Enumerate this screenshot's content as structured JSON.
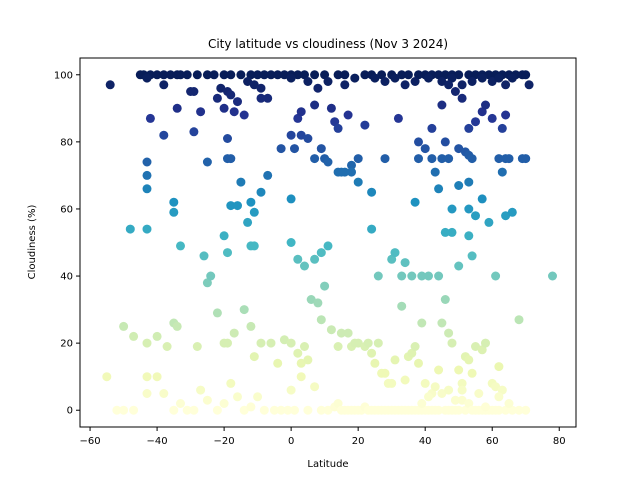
{
  "chart_data": {
    "type": "scatter",
    "title": "City latitude vs cloudiness (Nov 3 2024)",
    "xlabel": "Latitude",
    "ylabel": "Cloudiness (%)",
    "xlim": [
      -63,
      85
    ],
    "ylim": [
      -5,
      105
    ],
    "xticks": [
      -60,
      -40,
      -20,
      0,
      20,
      40,
      60,
      80
    ],
    "yticks": [
      0,
      20,
      40,
      60,
      80,
      100
    ],
    "grid": false,
    "colormap": "YlGnBu",
    "colormap_stops": [
      "#ffffd9",
      "#edf8b1",
      "#c7e9b4",
      "#7fcdbb",
      "#41b6c4",
      "#1d91c0",
      "#225ea8",
      "#253494",
      "#081d58"
    ],
    "color_by": "cloudiness",
    "points": [
      [
        -54,
        97
      ],
      [
        -45,
        100
      ],
      [
        -44,
        100
      ],
      [
        -42,
        100
      ],
      [
        -40,
        100
      ],
      [
        -38,
        100
      ],
      [
        -36,
        100
      ],
      [
        -34,
        100
      ],
      [
        -33,
        100
      ],
      [
        -31,
        100
      ],
      [
        -25,
        100
      ],
      [
        -23,
        100
      ],
      [
        -20,
        100
      ],
      [
        -18,
        100
      ],
      [
        -15,
        100
      ],
      [
        -12,
        100
      ],
      [
        -10,
        100
      ],
      [
        -8,
        100
      ],
      [
        -6,
        100
      ],
      [
        -4,
        100
      ],
      [
        -2,
        100
      ],
      [
        0,
        100
      ],
      [
        2,
        100
      ],
      [
        4,
        100
      ],
      [
        7,
        100
      ],
      [
        10,
        100
      ],
      [
        14,
        100
      ],
      [
        16,
        100
      ],
      [
        19,
        99
      ],
      [
        22,
        100
      ],
      [
        24,
        100
      ],
      [
        27,
        100
      ],
      [
        30,
        100
      ],
      [
        33,
        100
      ],
      [
        35,
        100
      ],
      [
        38,
        100
      ],
      [
        40,
        100
      ],
      [
        42,
        100
      ],
      [
        44,
        100
      ],
      [
        46,
        100
      ],
      [
        48,
        100
      ],
      [
        50,
        100
      ],
      [
        53,
        100
      ],
      [
        55,
        100
      ],
      [
        57,
        100
      ],
      [
        59,
        100
      ],
      [
        61,
        100
      ],
      [
        63,
        100
      ],
      [
        65,
        100
      ],
      [
        67,
        100
      ],
      [
        69,
        100
      ],
      [
        70,
        100
      ],
      [
        71,
        97
      ],
      [
        -43,
        99
      ],
      [
        -38,
        97
      ],
      [
        -30,
        95
      ],
      [
        -28,
        100
      ],
      [
        -22,
        93
      ],
      [
        -21,
        96
      ],
      [
        -19,
        95
      ],
      [
        -16,
        92
      ],
      [
        -13,
        98
      ],
      [
        -11,
        97
      ],
      [
        -9,
        96
      ],
      [
        -7,
        93
      ],
      [
        0,
        99
      ],
      [
        5,
        98
      ],
      [
        8,
        96
      ],
      [
        11,
        98
      ],
      [
        16,
        97
      ],
      [
        25,
        99
      ],
      [
        28,
        98
      ],
      [
        31,
        99
      ],
      [
        34,
        97
      ],
      [
        37,
        98
      ],
      [
        41,
        99
      ],
      [
        45,
        98
      ],
      [
        48,
        99
      ],
      [
        51,
        97
      ],
      [
        54,
        98
      ],
      [
        57,
        99
      ],
      [
        60,
        98
      ],
      [
        62,
        99
      ],
      [
        64,
        97
      ],
      [
        66,
        99
      ],
      [
        -42,
        87
      ],
      [
        -34,
        90
      ],
      [
        -29,
        95
      ],
      [
        -27,
        89
      ],
      [
        -20,
        90
      ],
      [
        -18,
        94
      ],
      [
        -17,
        89
      ],
      [
        -14,
        88
      ],
      [
        -9,
        93
      ],
      [
        2,
        87
      ],
      [
        3,
        89
      ],
      [
        7,
        91
      ],
      [
        12,
        90
      ],
      [
        13,
        86
      ],
      [
        14,
        84
      ],
      [
        17,
        88
      ],
      [
        22,
        85
      ],
      [
        32,
        87
      ],
      [
        38,
        80
      ],
      [
        42,
        84
      ],
      [
        45,
        91
      ],
      [
        47,
        97
      ],
      [
        49,
        95
      ],
      [
        51,
        93
      ],
      [
        53,
        84
      ],
      [
        55,
        86
      ],
      [
        57,
        89
      ],
      [
        58,
        91
      ],
      [
        60,
        87
      ],
      [
        63,
        84
      ],
      [
        64,
        88
      ],
      [
        -38,
        82
      ],
      [
        -29,
        83
      ],
      [
        -19,
        81
      ],
      [
        -3,
        78
      ],
      [
        0,
        82
      ],
      [
        1,
        78
      ],
      [
        3,
        82
      ],
      [
        5,
        81
      ],
      [
        7,
        75
      ],
      [
        9,
        78
      ],
      [
        10,
        75
      ],
      [
        11,
        74
      ],
      [
        15,
        71
      ],
      [
        18,
        73
      ],
      [
        20,
        75
      ],
      [
        24,
        65
      ],
      [
        28,
        75
      ],
      [
        38,
        75
      ],
      [
        40,
        78
      ],
      [
        42,
        75
      ],
      [
        43,
        71
      ],
      [
        45,
        75
      ],
      [
        46,
        80
      ],
      [
        47,
        75
      ],
      [
        50,
        78
      ],
      [
        52,
        77
      ],
      [
        53,
        76
      ],
      [
        54,
        75
      ],
      [
        62,
        75
      ],
      [
        63,
        71
      ],
      [
        64,
        75
      ],
      [
        65,
        75
      ],
      [
        69,
        75
      ],
      [
        70,
        75
      ],
      [
        -43,
        74
      ],
      [
        -43,
        70
      ],
      [
        -43,
        66
      ],
      [
        -35,
        62
      ],
      [
        -35,
        59
      ],
      [
        -25,
        74
      ],
      [
        -19,
        75
      ],
      [
        -18,
        75
      ],
      [
        -15,
        68
      ],
      [
        -13,
        56
      ],
      [
        -11,
        59
      ],
      [
        -9,
        65
      ],
      [
        -7,
        70
      ],
      [
        -18,
        61
      ],
      [
        -16,
        61
      ],
      [
        -12,
        62
      ],
      [
        0,
        63
      ],
      [
        14,
        71
      ],
      [
        16,
        71
      ],
      [
        18,
        71
      ],
      [
        20,
        68
      ],
      [
        37,
        62
      ],
      [
        44,
        66
      ],
      [
        48,
        60
      ],
      [
        50,
        67
      ],
      [
        53,
        68
      ],
      [
        53,
        60
      ],
      [
        55,
        58
      ],
      [
        57,
        63
      ],
      [
        59,
        56
      ],
      [
        64,
        58
      ],
      [
        66,
        59
      ],
      [
        -48,
        54
      ],
      [
        -43,
        54
      ],
      [
        -33,
        49
      ],
      [
        -26,
        46
      ],
      [
        -20,
        52
      ],
      [
        -19,
        47
      ],
      [
        -12,
        49
      ],
      [
        -11,
        49
      ],
      [
        0,
        50
      ],
      [
        2,
        45
      ],
      [
        4,
        43
      ],
      [
        7,
        45
      ],
      [
        9,
        47
      ],
      [
        11,
        49
      ],
      [
        24,
        54
      ],
      [
        26,
        40
      ],
      [
        30,
        45
      ],
      [
        31,
        47
      ],
      [
        33,
        40
      ],
      [
        34,
        44
      ],
      [
        36,
        40
      ],
      [
        39,
        40
      ],
      [
        41,
        40
      ],
      [
        44,
        40
      ],
      [
        46,
        53
      ],
      [
        48,
        53
      ],
      [
        50,
        43
      ],
      [
        53,
        52
      ],
      [
        54,
        46
      ],
      [
        61,
        40
      ],
      [
        78,
        40
      ],
      [
        -50,
        25
      ],
      [
        -47,
        22
      ],
      [
        -43,
        20
      ],
      [
        -43,
        10
      ],
      [
        -40,
        22
      ],
      [
        -37,
        19
      ],
      [
        -35,
        26
      ],
      [
        -34,
        25
      ],
      [
        -28,
        19
      ],
      [
        -25,
        38
      ],
      [
        -24,
        40
      ],
      [
        -22,
        29
      ],
      [
        -20,
        20
      ],
      [
        -19,
        20
      ],
      [
        -17,
        23
      ],
      [
        -14,
        30
      ],
      [
        -12,
        25
      ],
      [
        -11,
        16
      ],
      [
        -9,
        20
      ],
      [
        -6,
        20
      ],
      [
        -4,
        14
      ],
      [
        -2,
        21
      ],
      [
        0,
        20
      ],
      [
        2,
        17
      ],
      [
        3,
        14
      ],
      [
        4,
        19
      ],
      [
        5,
        15
      ],
      [
        6,
        33
      ],
      [
        8,
        32
      ],
      [
        9,
        27
      ],
      [
        10,
        37
      ],
      [
        12,
        24
      ],
      [
        14,
        19
      ],
      [
        15,
        23
      ],
      [
        17,
        23
      ],
      [
        18,
        19
      ],
      [
        19,
        20
      ],
      [
        20,
        20
      ],
      [
        22,
        19
      ],
      [
        23,
        20
      ],
      [
        24,
        17
      ],
      [
        25,
        14
      ],
      [
        26,
        20
      ],
      [
        27,
        11
      ],
      [
        28,
        11
      ],
      [
        30,
        8
      ],
      [
        33,
        31
      ],
      [
        35,
        16
      ],
      [
        36,
        17
      ],
      [
        38,
        14
      ],
      [
        39,
        26
      ],
      [
        40,
        8
      ],
      [
        42,
        5
      ],
      [
        44,
        12
      ],
      [
        45,
        26
      ],
      [
        46,
        33
      ],
      [
        47,
        23
      ],
      [
        48,
        20
      ],
      [
        50,
        12
      ],
      [
        51,
        8
      ],
      [
        52,
        16
      ],
      [
        53,
        15
      ],
      [
        54,
        11
      ],
      [
        55,
        19
      ],
      [
        57,
        18
      ],
      [
        58,
        20
      ],
      [
        60,
        8
      ],
      [
        61,
        7
      ],
      [
        62,
        13
      ],
      [
        63,
        6
      ],
      [
        68,
        27
      ],
      [
        -55,
        10
      ],
      [
        -52,
        0
      ],
      [
        -50,
        0
      ],
      [
        -47,
        0
      ],
      [
        -43,
        5
      ],
      [
        -40,
        10
      ],
      [
        -38,
        5
      ],
      [
        -35,
        0
      ],
      [
        -33,
        2
      ],
      [
        -31,
        0
      ],
      [
        -29,
        0
      ],
      [
        -27,
        6
      ],
      [
        -25,
        3
      ],
      [
        -22,
        0
      ],
      [
        -20,
        2
      ],
      [
        -18,
        8
      ],
      [
        -16,
        4
      ],
      [
        -14,
        0
      ],
      [
        -12,
        1
      ],
      [
        -10,
        4
      ],
      [
        -8,
        0
      ],
      [
        -5,
        0
      ],
      [
        -3,
        0
      ],
      [
        -1,
        0
      ],
      [
        0,
        6
      ],
      [
        1,
        0
      ],
      [
        3,
        10
      ],
      [
        5,
        0
      ],
      [
        7,
        7
      ],
      [
        9,
        0
      ],
      [
        11,
        0
      ],
      [
        13,
        1
      ],
      [
        14,
        2
      ],
      [
        15,
        0
      ],
      [
        16,
        0
      ],
      [
        17,
        0
      ],
      [
        18,
        0
      ],
      [
        19,
        0
      ],
      [
        20,
        0
      ],
      [
        21,
        0
      ],
      [
        22,
        1
      ],
      [
        23,
        0
      ],
      [
        24,
        0
      ],
      [
        25,
        0
      ],
      [
        26,
        0
      ],
      [
        27,
        0
      ],
      [
        28,
        0
      ],
      [
        29,
        0
      ],
      [
        30,
        0
      ],
      [
        31,
        0
      ],
      [
        32,
        0
      ],
      [
        33,
        0
      ],
      [
        34,
        0
      ],
      [
        35,
        0
      ],
      [
        36,
        0
      ],
      [
        37,
        0
      ],
      [
        38,
        0
      ],
      [
        39,
        0
      ],
      [
        40,
        0
      ],
      [
        41,
        0
      ],
      [
        42,
        0
      ],
      [
        43,
        0
      ],
      [
        44,
        0
      ],
      [
        45,
        5
      ],
      [
        46,
        0
      ],
      [
        47,
        0
      ],
      [
        48,
        0
      ],
      [
        49,
        0
      ],
      [
        50,
        0
      ],
      [
        51,
        3
      ],
      [
        52,
        0
      ],
      [
        53,
        2
      ],
      [
        54,
        0
      ],
      [
        55,
        0
      ],
      [
        56,
        0
      ],
      [
        57,
        0
      ],
      [
        58,
        0
      ],
      [
        59,
        0
      ],
      [
        60,
        0
      ],
      [
        61,
        0
      ],
      [
        62,
        0
      ],
      [
        64,
        0
      ],
      [
        66,
        0
      ],
      [
        68,
        0
      ],
      [
        70,
        0
      ],
      [
        29,
        8
      ],
      [
        31,
        15
      ],
      [
        34,
        9
      ],
      [
        37,
        19
      ],
      [
        39,
        2
      ],
      [
        41,
        4
      ],
      [
        43,
        7
      ],
      [
        47,
        6
      ],
      [
        49,
        3
      ],
      [
        51,
        6
      ],
      [
        56,
        5
      ],
      [
        58,
        1
      ],
      [
        62,
        4
      ],
      [
        65,
        2
      ]
    ]
  }
}
